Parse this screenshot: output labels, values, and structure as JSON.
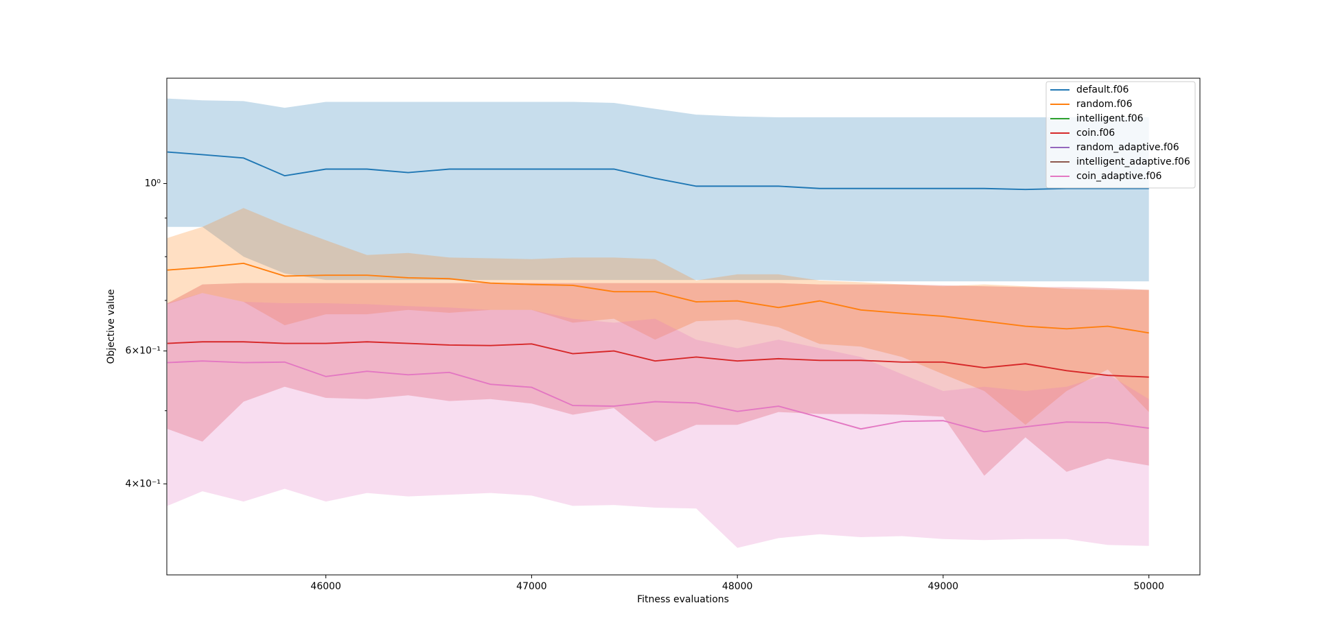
{
  "chart_data": {
    "type": "line",
    "xlabel": "Fitness evaluations",
    "ylabel": "Objective value",
    "x": [
      45230,
      45400,
      45600,
      45800,
      46000,
      46200,
      46400,
      46600,
      46800,
      47000,
      47200,
      47400,
      47600,
      47800,
      48000,
      48200,
      48400,
      48600,
      48800,
      49000,
      49200,
      49400,
      49600,
      49800,
      50000
    ],
    "xlim": [
      45227,
      50248
    ],
    "xticks": [
      46000,
      47000,
      48000,
      49000,
      50000
    ],
    "ylim": [
      0.303,
      1.379
    ],
    "log_y": true,
    "yticks": [
      {
        "value": 1,
        "label": "10⁰"
      },
      {
        "value": 0.6,
        "label": "6×10⁻¹"
      },
      {
        "value": 0.4,
        "label": "4×10⁻¹"
      }
    ],
    "yminorticks": [
      0.5,
      0.7,
      0.8,
      0.9
    ],
    "legend": "upper right",
    "band_opacity": 0.25,
    "series": [
      {
        "name": "default.f06",
        "color": "#1f77b4",
        "values": [
          1.101,
          1.092,
          1.081,
          1.024,
          1.045,
          1.045,
          1.034,
          1.045,
          1.045,
          1.045,
          1.045,
          1.045,
          1.016,
          0.992,
          0.992,
          0.992,
          0.985,
          0.985,
          0.985,
          0.985,
          0.985,
          0.982,
          0.985,
          0.985,
          0.985
        ],
        "upper": [
          1.296,
          1.289,
          1.286,
          1.26,
          1.283,
          1.283,
          1.283,
          1.283,
          1.283,
          1.283,
          1.283,
          1.279,
          1.256,
          1.234,
          1.227,
          1.224,
          1.224,
          1.224,
          1.224,
          1.224,
          1.224,
          1.224,
          1.224,
          1.224,
          1.224
        ],
        "lower": [
          0.876,
          0.876,
          0.8,
          0.76,
          0.745,
          0.745,
          0.745,
          0.745,
          0.745,
          0.745,
          0.745,
          0.745,
          0.745,
          0.745,
          0.745,
          0.745,
          0.745,
          0.742,
          0.742,
          0.742,
          0.742,
          0.742,
          0.742,
          0.742,
          0.742
        ]
      },
      {
        "name": "random.f06",
        "color": "#ff7f0e",
        "values": [
          0.768,
          0.774,
          0.784,
          0.754,
          0.756,
          0.756,
          0.75,
          0.748,
          0.738,
          0.735,
          0.733,
          0.719,
          0.719,
          0.697,
          0.699,
          0.685,
          0.699,
          0.68,
          0.673,
          0.667,
          0.657,
          0.647,
          0.642,
          0.647,
          0.634
        ],
        "upper": [
          0.847,
          0.876,
          0.928,
          0.881,
          0.841,
          0.804,
          0.809,
          0.798,
          0.796,
          0.794,
          0.798,
          0.798,
          0.794,
          0.744,
          0.758,
          0.758,
          0.744,
          0.74,
          0.735,
          0.731,
          0.735,
          0.731,
          0.725,
          0.723,
          0.723
        ],
        "lower": [
          0.692,
          0.716,
          0.697,
          0.649,
          0.671,
          0.671,
          0.68,
          0.674,
          0.68,
          0.68,
          0.654,
          0.662,
          0.621,
          0.657,
          0.66,
          0.645,
          0.613,
          0.608,
          0.589,
          0.559,
          0.531,
          0.479,
          0.531,
          0.567,
          0.498
        ]
      },
      {
        "name": "intelligent.f06",
        "color": "#2ca02c"
      },
      {
        "name": "coin.f06",
        "color": "#d62728",
        "values": [
          0.614,
          0.617,
          0.617,
          0.614,
          0.614,
          0.617,
          0.614,
          0.611,
          0.61,
          0.613,
          0.595,
          0.6,
          0.582,
          0.589,
          0.582,
          0.586,
          0.583,
          0.583,
          0.58,
          0.58,
          0.57,
          0.577,
          0.565,
          0.557,
          0.554
        ],
        "upper": [
          0.694,
          0.735,
          0.738,
          0.738,
          0.738,
          0.738,
          0.738,
          0.738,
          0.738,
          0.738,
          0.738,
          0.738,
          0.738,
          0.738,
          0.738,
          0.738,
          0.735,
          0.735,
          0.735,
          0.733,
          0.731,
          0.729,
          0.729,
          0.727,
          0.723
        ],
        "lower": [
          0.473,
          0.455,
          0.514,
          0.538,
          0.52,
          0.518,
          0.524,
          0.515,
          0.518,
          0.511,
          0.494,
          0.504,
          0.455,
          0.479,
          0.479,
          0.498,
          0.495,
          0.495,
          0.494,
          0.491,
          0.41,
          0.461,
          0.415,
          0.432,
          0.423
        ]
      },
      {
        "name": "random_adaptive.f06",
        "color": "#9467bd"
      },
      {
        "name": "intelligent_adaptive.f06",
        "color": "#8c564b"
      },
      {
        "name": "coin_adaptive.f06",
        "color": "#e377c2",
        "values": [
          0.579,
          0.582,
          0.579,
          0.58,
          0.555,
          0.564,
          0.558,
          0.562,
          0.542,
          0.537,
          0.508,
          0.507,
          0.514,
          0.512,
          0.499,
          0.507,
          0.49,
          0.473,
          0.484,
          0.485,
          0.469,
          0.476,
          0.483,
          0.482,
          0.474
        ],
        "upper": [
          0.694,
          0.716,
          0.697,
          0.694,
          0.694,
          0.692,
          0.688,
          0.685,
          0.68,
          0.68,
          0.662,
          0.654,
          0.662,
          0.621,
          0.605,
          0.621,
          0.605,
          0.589,
          0.559,
          0.531,
          0.538,
          0.531,
          0.538,
          0.559,
          0.518
        ],
        "lower": [
          0.374,
          0.391,
          0.379,
          0.394,
          0.379,
          0.389,
          0.385,
          0.387,
          0.389,
          0.386,
          0.374,
          0.375,
          0.372,
          0.371,
          0.329,
          0.339,
          0.343,
          0.34,
          0.341,
          0.338,
          0.337,
          0.338,
          0.338,
          0.332,
          0.331
        ]
      }
    ]
  }
}
